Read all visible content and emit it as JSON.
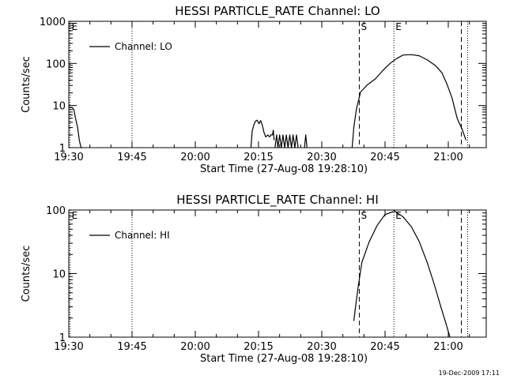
{
  "footer_date": "19-Dec-2009 17:11",
  "chart_data": [
    {
      "type": "line",
      "title": "HESSI PARTICLE_RATE Channel: LO",
      "xlabel": "Start Time (27-Aug-08 19:28:10)",
      "ylabel": "Counts/sec",
      "yscale": "log",
      "x_unit": "minutes after 19:30 UT",
      "xlim": [
        0,
        99
      ],
      "ylim": [
        1,
        1000
      ],
      "x_ticks": [
        {
          "x": 0,
          "label": "19:30"
        },
        {
          "x": 15,
          "label": "19:45"
        },
        {
          "x": 30,
          "label": "20:00"
        },
        {
          "x": 45,
          "label": "20:15"
        },
        {
          "x": 60,
          "label": "20:30"
        },
        {
          "x": 75,
          "label": "20:45"
        },
        {
          "x": 90,
          "label": "21:00"
        }
      ],
      "y_ticks": [
        {
          "y": 1,
          "label": "1"
        },
        {
          "y": 10,
          "label": "10"
        },
        {
          "y": 100,
          "label": "100"
        },
        {
          "y": 1000,
          "label": "1000"
        }
      ],
      "legend": {
        "entries": [
          "Channel: LO"
        ],
        "placement": "top-left"
      },
      "markers": [
        {
          "x": 0.3,
          "label": "E",
          "style": "dotted"
        },
        {
          "x": 15,
          "label": "",
          "style": "dotted"
        },
        {
          "x": 68.9,
          "label": "S",
          "style": "dashed"
        },
        {
          "x": 77.1,
          "label": "E",
          "style": "dotted"
        },
        {
          "x": 93.1,
          "label": "",
          "style": "dashed"
        },
        {
          "x": 94.6,
          "label": "",
          "style": "dotted"
        }
      ],
      "series": [
        {
          "name": "Channel: LO",
          "segments": [
            [
              [
                0,
                9
              ],
              [
                0.8,
                9
              ],
              [
                1.2,
                8
              ],
              [
                1.6,
                5
              ],
              [
                2.1,
                3
              ],
              [
                2.5,
                1.5
              ],
              [
                2.9,
                1
              ],
              [
                3.3,
                1
              ]
            ],
            [
              [
                43.2,
                1
              ],
              [
                43.5,
                2.5
              ],
              [
                43.9,
                3.5
              ],
              [
                44.3,
                4.3
              ],
              [
                44.7,
                4.5
              ],
              [
                45.1,
                3.7
              ],
              [
                45.5,
                4.4
              ],
              [
                45.9,
                3.4
              ],
              [
                46.3,
                2.3
              ],
              [
                46.7,
                1.8
              ],
              [
                47.2,
                2.0
              ],
              [
                47.6,
                1.8
              ],
              [
                47.9,
                2.0
              ],
              [
                48.3,
                2.0
              ],
              [
                48.5,
                2.6
              ],
              [
                48.7,
                1.5
              ]
            ],
            [
              [
                48.9,
                1
              ],
              [
                49.3,
                2
              ],
              [
                49.6,
                1
              ],
              [
                50,
                2
              ],
              [
                50.4,
                1
              ],
              [
                50.8,
                2
              ],
              [
                51.2,
                1
              ],
              [
                51.6,
                2
              ],
              [
                52,
                1
              ],
              [
                52.4,
                2
              ],
              [
                52.8,
                1
              ],
              [
                53.2,
                2
              ],
              [
                53.6,
                1
              ],
              [
                54,
                2
              ],
              [
                54.4,
                1
              ]
            ],
            [
              [
                55.9,
                1
              ],
              [
                56.2,
                2
              ],
              [
                56.5,
                1
              ]
            ],
            [
              [
                67.2,
                1
              ],
              [
                67.6,
                3
              ],
              [
                68.2,
                8
              ],
              [
                69.2,
                21
              ],
              [
                70.8,
                31
              ],
              [
                72.7,
                43
              ],
              [
                74.6,
                70
              ],
              [
                76.2,
                100
              ],
              [
                77.7,
                130
              ],
              [
                79.3,
                158
              ],
              [
                81.2,
                162
              ],
              [
                83.1,
                152
              ],
              [
                85.1,
                120
              ],
              [
                87.0,
                88
              ],
              [
                88.5,
                60
              ],
              [
                89.7,
                32
              ],
              [
                90.9,
                15
              ],
              [
                92.1,
                5
              ],
              [
                93.3,
                2.7
              ],
              [
                94.2,
                1.5
              ]
            ]
          ]
        }
      ]
    },
    {
      "type": "line",
      "title": "HESSI PARTICLE_RATE Channel: HI",
      "xlabel": "Start Time (27-Aug-08 19:28:10)",
      "ylabel": "Counts/sec",
      "yscale": "log",
      "x_unit": "minutes after 19:30 UT",
      "xlim": [
        0,
        99
      ],
      "ylim": [
        1,
        100
      ],
      "x_ticks": [
        {
          "x": 0,
          "label": "19:30"
        },
        {
          "x": 15,
          "label": "19:45"
        },
        {
          "x": 30,
          "label": "20:00"
        },
        {
          "x": 45,
          "label": "20:15"
        },
        {
          "x": 60,
          "label": "20:30"
        },
        {
          "x": 75,
          "label": "20:45"
        },
        {
          "x": 90,
          "label": "21:00"
        }
      ],
      "y_ticks": [
        {
          "y": 1,
          "label": "1"
        },
        {
          "y": 10,
          "label": "10"
        },
        {
          "y": 100,
          "label": "100"
        }
      ],
      "legend": {
        "entries": [
          "Channel: HI"
        ],
        "placement": "top-left"
      },
      "markers": [
        {
          "x": 0.3,
          "label": "E",
          "style": "dotted"
        },
        {
          "x": 15,
          "label": "",
          "style": "dotted"
        },
        {
          "x": 68.9,
          "label": "S",
          "style": "dashed"
        },
        {
          "x": 77.1,
          "label": "E",
          "style": "dotted"
        },
        {
          "x": 93.1,
          "label": "",
          "style": "dashed"
        },
        {
          "x": 94.6,
          "label": "",
          "style": "dotted"
        }
      ],
      "series": [
        {
          "name": "Channel: HI",
          "segments": [
            [
              [
                67.6,
                1.8
              ],
              [
                68.0,
                3
              ],
              [
                68.6,
                6
              ],
              [
                69.5,
                15
              ],
              [
                71.2,
                31
              ],
              [
                73.1,
                57
              ],
              [
                75.0,
                85
              ],
              [
                77.3,
                96
              ],
              [
                79.3,
                78
              ],
              [
                81.2,
                55
              ],
              [
                83.1,
                32
              ],
              [
                85.0,
                15
              ],
              [
                86.6,
                7
              ],
              [
                88.1,
                3.2
              ],
              [
                89.5,
                1.6
              ],
              [
                90.4,
                1.0
              ]
            ]
          ]
        }
      ]
    }
  ]
}
